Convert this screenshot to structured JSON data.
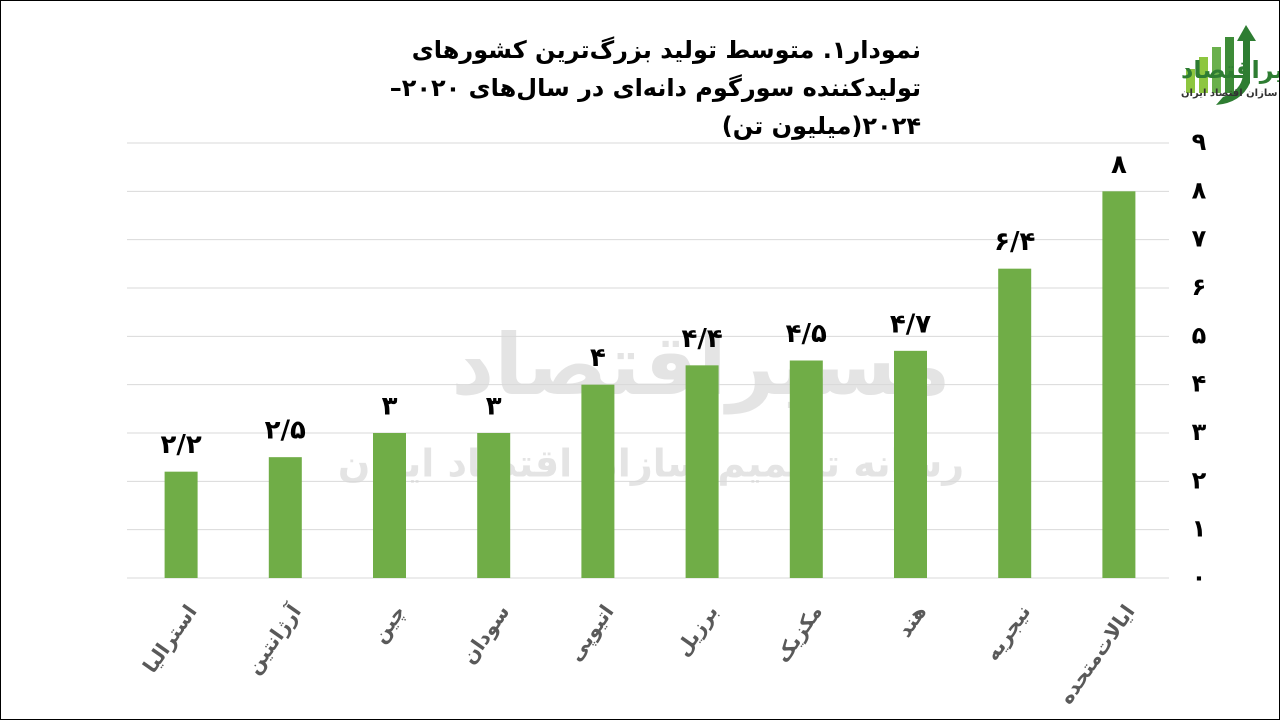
{
  "chart_data": {
    "type": "bar",
    "title": "نمودار۱. متوسط تولید بزرگ‌ترین کشورهای تولیدکننده سورگوم دانه‌ای در سال‌های ۲۰۲۰–۲۰۲۴(میلیون تن)",
    "categories": [
      "استرالیا",
      "آرژانتین",
      "چین",
      "سودان",
      "اتیوپی",
      "برزیل",
      "مکزیک",
      "هند",
      "نیجریه",
      "ایالات‌متحده"
    ],
    "values": [
      2.2,
      2.5,
      3,
      3,
      4,
      4.4,
      4.5,
      4.7,
      6.4,
      8
    ],
    "value_labels": [
      "۲/۲",
      "۲/۵",
      "۳",
      "۳",
      "۴",
      "۴/۴",
      "۴/۵",
      "۴/۷",
      "۶/۴",
      "۸"
    ],
    "color": "#70ad47",
    "ylim": [
      0,
      9
    ],
    "yticks": [
      {
        "value": 0,
        "label": "۰"
      },
      {
        "value": 1,
        "label": "۱"
      },
      {
        "value": 2,
        "label": "۲"
      },
      {
        "value": 3,
        "label": "۳"
      },
      {
        "value": 4,
        "label": "۴"
      },
      {
        "value": 5,
        "label": "۵"
      },
      {
        "value": 6,
        "label": "۶"
      },
      {
        "value": 7,
        "label": "۷"
      },
      {
        "value": 8,
        "label": "۸"
      },
      {
        "value": 9,
        "label": "۹"
      }
    ],
    "grid": true,
    "axis_side": "right"
  },
  "logo": {
    "name": "مسیراقتصاد",
    "tagline": "رسانه تصمیم سازان اقتصاد ایران"
  }
}
